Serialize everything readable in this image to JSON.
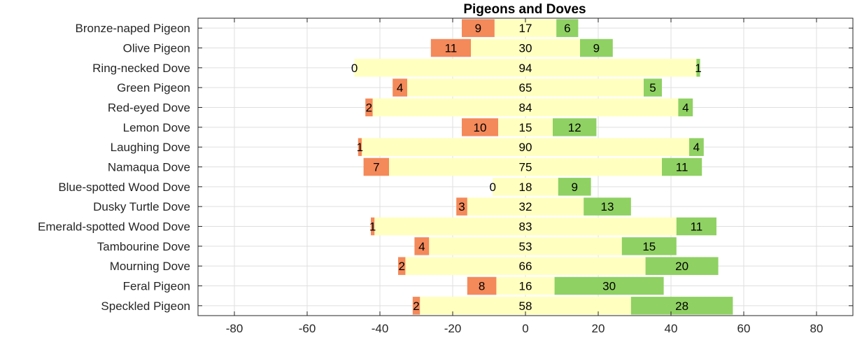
{
  "chart_data": {
    "type": "bar",
    "orientation": "horizontal-diverging",
    "title": "Pigeons and Doves",
    "xlabel": "",
    "ylabel": "",
    "xlim": [
      -90,
      90
    ],
    "x_ticks": [
      -80,
      -60,
      -40,
      -20,
      0,
      20,
      40,
      60,
      80
    ],
    "grid": true,
    "legend": "none",
    "categories": [
      "Bronze-naped Pigeon",
      "Olive Pigeon",
      "Ring-necked Dove",
      "Green Pigeon",
      "Red-eyed Dove",
      "Lemon Dove",
      "Laughing Dove",
      "Namaqua Dove",
      "Blue-spotted Wood Dove",
      "Dusky Turtle Dove",
      "Emerald-spotted Wood Dove",
      "Tambourine Dove",
      "Mourning Dove",
      "Feral Pigeon",
      "Speckled Pigeon"
    ],
    "series": [
      {
        "values": [
          9,
          11,
          0,
          4,
          2,
          10,
          1,
          7,
          0,
          3,
          1,
          4,
          2,
          8,
          2
        ],
        "color": "#f4895a",
        "position": "left"
      },
      {
        "values": [
          17,
          30,
          94,
          65,
          84,
          15,
          90,
          75,
          18,
          32,
          83,
          53,
          66,
          16,
          58
        ],
        "color": "#ffffc0",
        "position": "center"
      },
      {
        "values": [
          6,
          9,
          1,
          5,
          4,
          12,
          4,
          11,
          9,
          13,
          11,
          15,
          20,
          30,
          28
        ],
        "color": "#8fd162",
        "position": "right"
      }
    ]
  }
}
